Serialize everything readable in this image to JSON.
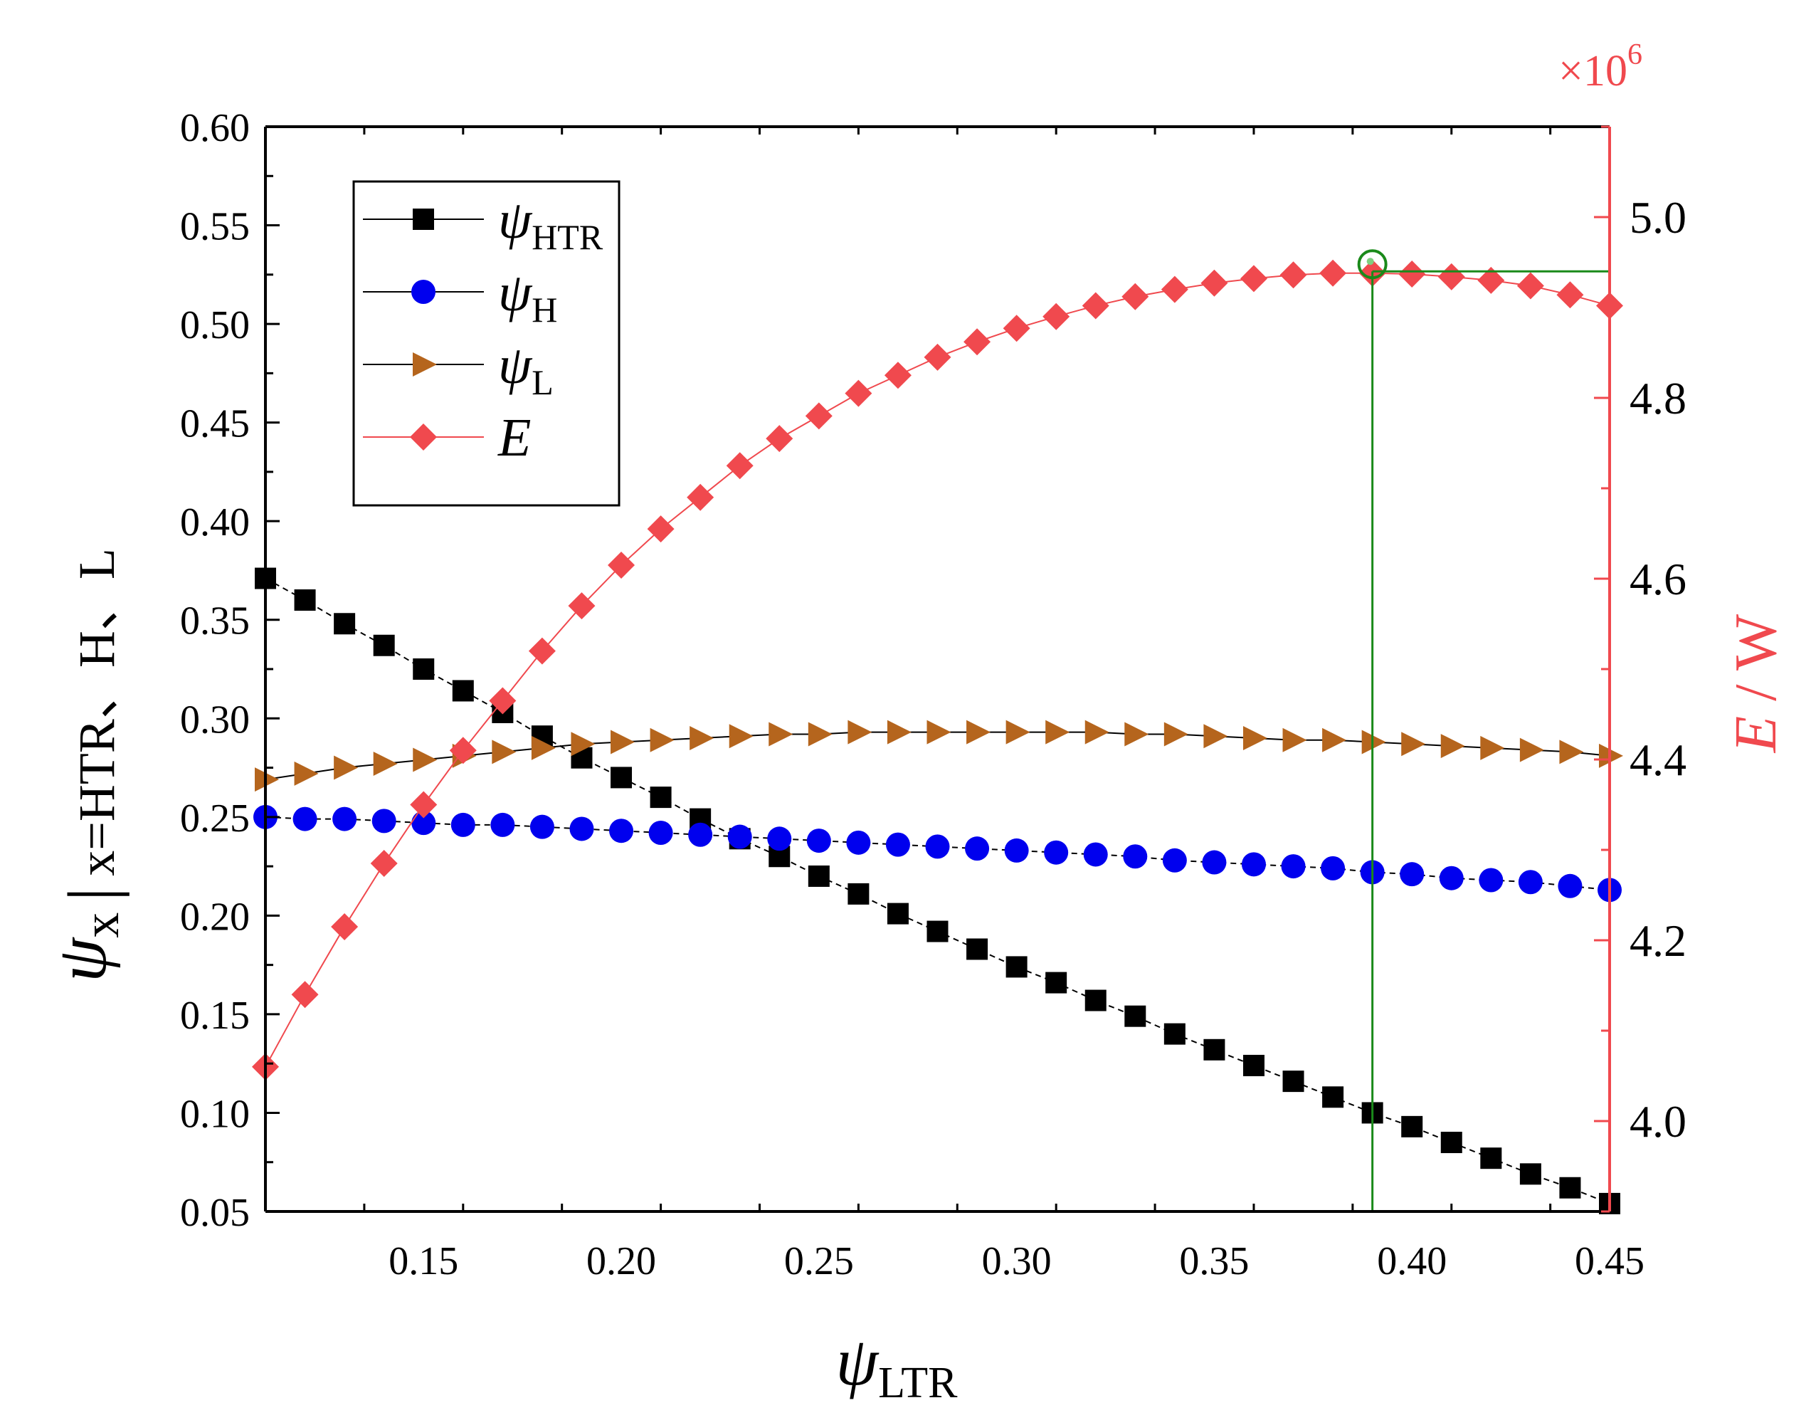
{
  "chart_data": {
    "type": "line",
    "x_axis": {
      "label_symbol": "ψ",
      "label_sub": "LTR",
      "range": [
        0.11,
        0.45
      ],
      "ticks": [
        "0.15",
        "0.20",
        "0.25",
        "0.30",
        "0.35",
        "0.40",
        "0.45"
      ],
      "tick_values": [
        0.15,
        0.2,
        0.25,
        0.3,
        0.35,
        0.4,
        0.45
      ]
    },
    "y_left": {
      "label_symbol": "ψ",
      "label_sub": "x",
      "label_suffix": "│x=HTR、H、L",
      "range": [
        0.05,
        0.6
      ],
      "ticks": [
        "0.05",
        "0.10",
        "0.15",
        "0.20",
        "0.25",
        "0.30",
        "0.35",
        "0.40",
        "0.45",
        "0.50",
        "0.55",
        "0.60"
      ],
      "tick_values": [
        0.05,
        0.1,
        0.15,
        0.2,
        0.25,
        0.3,
        0.35,
        0.4,
        0.45,
        0.5,
        0.55,
        0.6
      ]
    },
    "y_right": {
      "label_italic": "E",
      "label_rest": " / W",
      "multiplier": "×10",
      "multiplier_exp": "6",
      "range": [
        3.9,
        5.1
      ],
      "ticks": [
        "4.0",
        "4.2",
        "4.4",
        "4.6",
        "4.8",
        "5.0"
      ],
      "tick_values": [
        4.0,
        4.2,
        4.4,
        4.6,
        4.8,
        5.0
      ]
    },
    "x": [
      0.11,
      0.12,
      0.13,
      0.14,
      0.15,
      0.16,
      0.17,
      0.18,
      0.19,
      0.2,
      0.21,
      0.22,
      0.23,
      0.24,
      0.25,
      0.26,
      0.27,
      0.28,
      0.29,
      0.3,
      0.31,
      0.32,
      0.33,
      0.34,
      0.35,
      0.36,
      0.37,
      0.38,
      0.39,
      0.4,
      0.41,
      0.42,
      0.43,
      0.44,
      0.45
    ],
    "series": [
      {
        "name": "HTR",
        "legend_symbol": "ψ",
        "legend_sub": "HTR",
        "axis": "left",
        "marker": "square",
        "color": "#000000",
        "line_color": "#000000",
        "dashed": true,
        "values": [
          0.371,
          0.36,
          0.348,
          0.337,
          0.325,
          0.314,
          0.303,
          0.291,
          0.28,
          0.27,
          0.26,
          0.249,
          0.239,
          0.23,
          0.22,
          0.211,
          0.201,
          0.192,
          0.183,
          0.174,
          0.166,
          0.157,
          0.149,
          0.14,
          0.132,
          0.124,
          0.116,
          0.108,
          0.1,
          0.093,
          0.085,
          0.077,
          0.069,
          0.062,
          0.054
        ]
      },
      {
        "name": "H",
        "legend_symbol": "ψ",
        "legend_sub": "H",
        "axis": "left",
        "marker": "circle",
        "color": "#0000ee",
        "line_color": "#000000",
        "dashed": true,
        "values": [
          0.25,
          0.249,
          0.249,
          0.248,
          0.247,
          0.246,
          0.246,
          0.245,
          0.244,
          0.243,
          0.242,
          0.241,
          0.24,
          0.239,
          0.238,
          0.237,
          0.236,
          0.235,
          0.234,
          0.233,
          0.232,
          0.231,
          0.23,
          0.228,
          0.227,
          0.226,
          0.225,
          0.224,
          0.222,
          0.221,
          0.219,
          0.218,
          0.217,
          0.215,
          0.213
        ]
      },
      {
        "name": "L",
        "legend_symbol": "ψ",
        "legend_sub": "L",
        "axis": "left",
        "marker": "triangle-right",
        "color": "#b5651d",
        "line_color": "#000000",
        "dashed": false,
        "values": [
          0.269,
          0.272,
          0.275,
          0.277,
          0.279,
          0.281,
          0.283,
          0.285,
          0.287,
          0.288,
          0.289,
          0.29,
          0.291,
          0.292,
          0.292,
          0.293,
          0.293,
          0.293,
          0.293,
          0.293,
          0.293,
          0.293,
          0.292,
          0.292,
          0.291,
          0.29,
          0.289,
          0.289,
          0.288,
          0.287,
          0.286,
          0.285,
          0.284,
          0.283,
          0.281
        ]
      },
      {
        "name": "E",
        "legend_symbol": "E",
        "legend_sub": "",
        "axis": "right",
        "marker": "diamond",
        "color": "#f0494e",
        "line_color": "#f0494e",
        "dashed": false,
        "values": [
          4.06,
          4.14,
          4.215,
          4.285,
          4.35,
          4.41,
          4.465,
          4.52,
          4.57,
          4.615,
          4.655,
          4.69,
          4.725,
          4.755,
          4.78,
          4.805,
          4.825,
          4.845,
          4.862,
          4.877,
          4.89,
          4.902,
          4.912,
          4.92,
          4.927,
          4.932,
          4.936,
          4.938,
          4.938,
          4.937,
          4.934,
          4.93,
          4.924,
          4.914,
          4.902
        ]
      }
    ],
    "annotation": {
      "type": "crosshair",
      "x": 0.39,
      "y_right": 4.94,
      "color": "#1a8a1a"
    },
    "legend_placement": "top-left"
  }
}
